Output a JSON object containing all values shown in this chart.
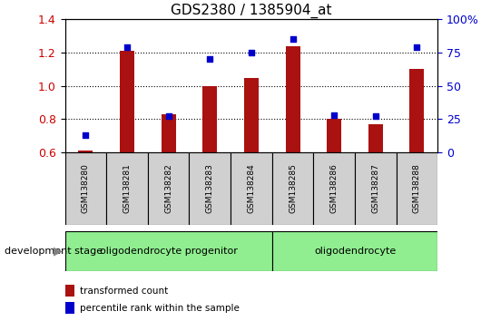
{
  "title": "GDS2380 / 1385904_at",
  "samples": [
    "GSM138280",
    "GSM138281",
    "GSM138282",
    "GSM138283",
    "GSM138284",
    "GSM138285",
    "GSM138286",
    "GSM138287",
    "GSM138288"
  ],
  "transformed_count": [
    0.61,
    1.21,
    0.83,
    1.0,
    1.05,
    1.24,
    0.8,
    0.77,
    1.1
  ],
  "percentile_rank": [
    13,
    79,
    27,
    70,
    75,
    85,
    28,
    27,
    79
  ],
  "ylim_left": [
    0.6,
    1.4
  ],
  "ylim_right": [
    0,
    100
  ],
  "yticks_left": [
    0.6,
    0.8,
    1.0,
    1.2,
    1.4
  ],
  "yticks_right": [
    0,
    25,
    50,
    75,
    100
  ],
  "ytick_labels_right": [
    "0",
    "25",
    "50",
    "75",
    "100%"
  ],
  "bar_color": "#aa1111",
  "dot_color": "#0000cc",
  "bar_width": 0.35,
  "group1_count": 5,
  "group2_count": 4,
  "group1_label": "oligodendrocyte progenitor",
  "group2_label": "oligodendrocyte",
  "group_color": "#90ee90",
  "sample_box_color": "#d0d0d0",
  "legend_entries": [
    {
      "label": "transformed count",
      "color": "#aa1111"
    },
    {
      "label": "percentile rank within the sample",
      "color": "#0000cc"
    }
  ],
  "xlabel_stage": "development stage",
  "grid_linestyle": "dotted",
  "title_fontsize": 11,
  "axis_color_left": "#cc0000",
  "axis_color_right": "#0000cc"
}
